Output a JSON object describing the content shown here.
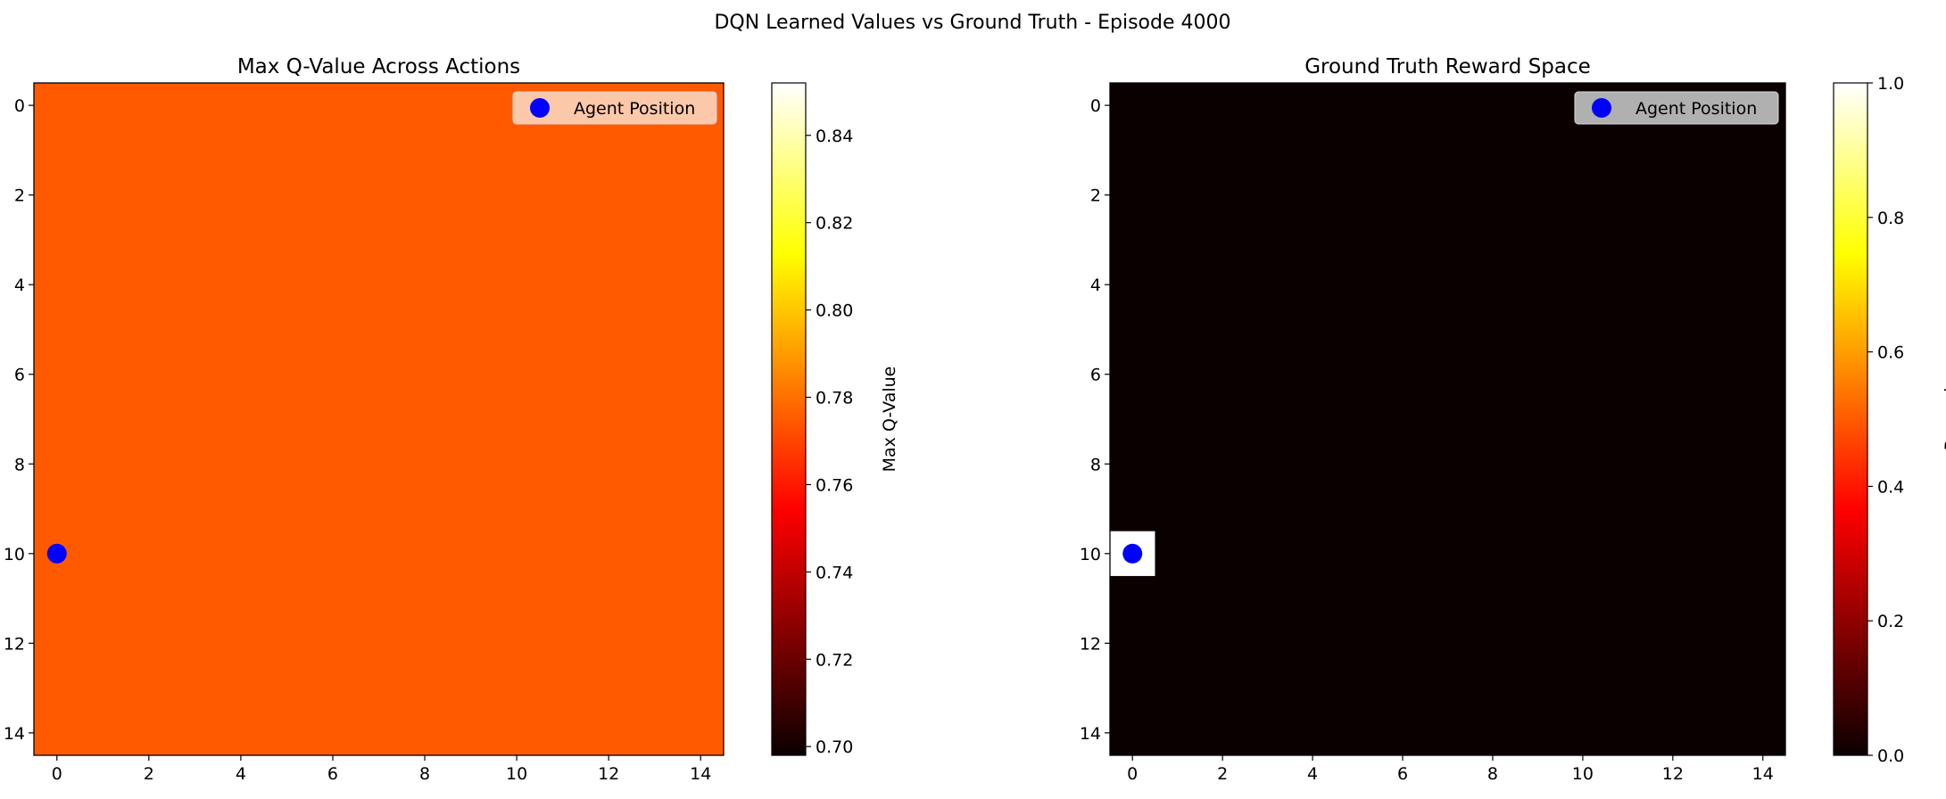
{
  "figure": {
    "suptitle": "DQN Learned Values vs Ground Truth - Episode 4000"
  },
  "chart_data": [
    {
      "type": "heatmap",
      "title": "Max Q-Value Across Actions",
      "grid_size": [
        15,
        15
      ],
      "uniform_value": 0.775,
      "x_ticks": [
        "0",
        "2",
        "4",
        "6",
        "8",
        "10",
        "12",
        "14"
      ],
      "y_ticks": [
        "0",
        "2",
        "4",
        "6",
        "8",
        "10",
        "12",
        "14"
      ],
      "xlim": [
        -0.5,
        14.5
      ],
      "ylim": [
        14.5,
        -0.5
      ],
      "colormap": "hot",
      "colorbar": {
        "label": "Max Q-Value",
        "range": [
          0.698,
          0.852
        ],
        "ticks": [
          "0.70",
          "0.72",
          "0.74",
          "0.76",
          "0.78",
          "0.80",
          "0.82",
          "0.84"
        ]
      },
      "agent": {
        "x": 0,
        "y": 10,
        "color": "#0000ff"
      },
      "legend": {
        "entries": [
          "Agent Position"
        ],
        "placement": "upper right",
        "background": "#fcdcc8"
      }
    },
    {
      "type": "heatmap",
      "title": "Ground Truth Reward Space",
      "grid_size": [
        15,
        15
      ],
      "uniform_value": 0.0,
      "highlight_cells": [
        {
          "x": 0,
          "y": 10,
          "value": 1.0
        }
      ],
      "x_ticks": [
        "0",
        "2",
        "4",
        "6",
        "8",
        "10",
        "12",
        "14"
      ],
      "y_ticks": [
        "0",
        "2",
        "4",
        "6",
        "8",
        "10",
        "12",
        "14"
      ],
      "xlim": [
        -0.5,
        14.5
      ],
      "ylim": [
        14.5,
        -0.5
      ],
      "colormap": "hot",
      "colorbar": {
        "label": "Reward",
        "range": [
          0.0,
          1.0
        ],
        "ticks": [
          "0.0",
          "0.2",
          "0.4",
          "0.6",
          "0.8",
          "1.0"
        ]
      },
      "agent": {
        "x": 0,
        "y": 10,
        "color": "#0000ff"
      },
      "legend": {
        "entries": [
          "Agent Position"
        ],
        "placement": "upper right",
        "background": "#cfcfcf"
      }
    }
  ]
}
